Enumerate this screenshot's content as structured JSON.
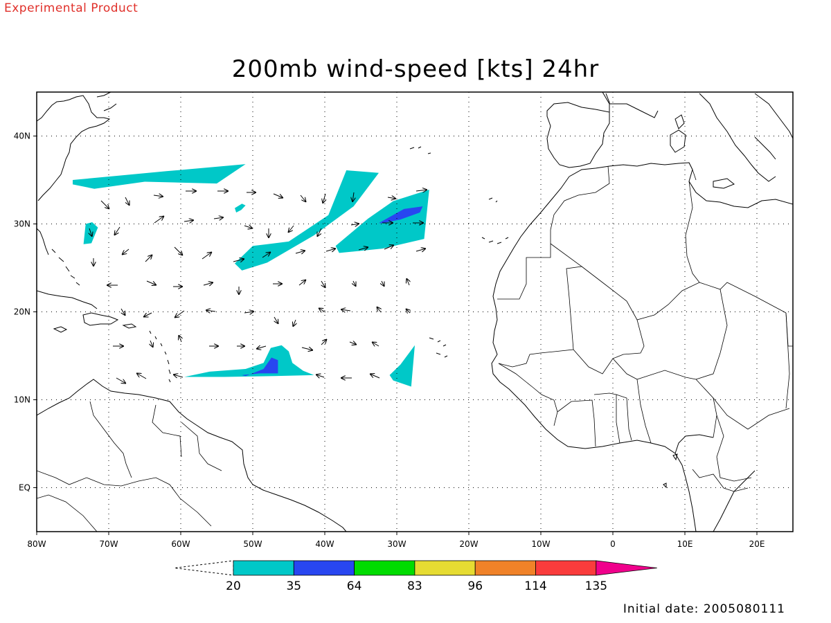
{
  "header": {
    "experimental_label": "Experimental Product",
    "title": "200mb wind-speed [kts] 24hr"
  },
  "footer": {
    "initial_date_label": "Initial date:",
    "initial_date_value": "2005080111"
  },
  "map": {
    "projection": "lat-lon",
    "lon_range": [
      -80,
      25
    ],
    "lat_range": [
      -5,
      45
    ],
    "grid": "dotted",
    "x_ticks": [
      {
        "lon": -80,
        "label": "80W"
      },
      {
        "lon": -70,
        "label": "70W"
      },
      {
        "lon": -60,
        "label": "60W"
      },
      {
        "lon": -50,
        "label": "50W"
      },
      {
        "lon": -40,
        "label": "40W"
      },
      {
        "lon": -30,
        "label": "30W"
      },
      {
        "lon": -20,
        "label": "20W"
      },
      {
        "lon": -10,
        "label": "10W"
      },
      {
        "lon": 0,
        "label": "0"
      },
      {
        "lon": 10,
        "label": "10E"
      },
      {
        "lon": 20,
        "label": "20E"
      }
    ],
    "y_ticks": [
      {
        "lat": 40,
        "label": "40N"
      },
      {
        "lat": 30,
        "label": "30N"
      },
      {
        "lat": 20,
        "label": "20N"
      },
      {
        "lat": 10,
        "label": "10N"
      },
      {
        "lat": 0,
        "label": "EQ"
      }
    ],
    "shading": [
      {
        "level": "20-35",
        "color": "#00c8c8",
        "polygon": [
          [
            -75,
            35
          ],
          [
            -62,
            36
          ],
          [
            -51,
            36.8
          ],
          [
            -55,
            34.6
          ],
          [
            -65,
            34.8
          ],
          [
            -72,
            34
          ],
          [
            -75,
            34.5
          ]
        ]
      },
      {
        "level": "20-35",
        "color": "#00c8c8",
        "polygon": [
          [
            -73.2,
            30
          ],
          [
            -72.3,
            30.2
          ],
          [
            -71.5,
            29.6
          ],
          [
            -72.4,
            27.8
          ],
          [
            -73.5,
            27.7
          ]
        ]
      },
      {
        "level": "20-35",
        "color": "#00c8c8",
        "polygon": [
          [
            -51.5,
            32.3
          ],
          [
            -51,
            32.1
          ],
          [
            -51.6,
            31.6
          ],
          [
            -52.3,
            31.3
          ],
          [
            -52.5,
            31.8
          ]
        ]
      },
      {
        "level": "20-35",
        "color": "#00c8c8",
        "polygon": [
          [
            -45,
            28
          ],
          [
            -39.5,
            31
          ],
          [
            -37,
            36.1
          ],
          [
            -32.5,
            35.8
          ],
          [
            -36,
            32
          ],
          [
            -41.5,
            28.7
          ],
          [
            -48,
            25.6
          ],
          [
            -51.5,
            24.7
          ],
          [
            -52.5,
            25.5
          ],
          [
            -50,
            27.5
          ]
        ]
      },
      {
        "level": "20-35",
        "color": "#00c8c8",
        "polygon": [
          [
            -38.5,
            27.5
          ],
          [
            -34,
            30.6
          ],
          [
            -30.5,
            32.6
          ],
          [
            -25.5,
            33.9
          ],
          [
            -26.2,
            28.3
          ],
          [
            -32,
            27.2
          ],
          [
            -38,
            26.7
          ]
        ]
      },
      {
        "level": "35-64",
        "color": "#2846f0",
        "polygon": [
          [
            -32.5,
            30.1
          ],
          [
            -29,
            31.7
          ],
          [
            -26.4,
            32
          ],
          [
            -26.8,
            31.3
          ],
          [
            -29.5,
            30.5
          ],
          [
            -32,
            30.1
          ]
        ]
      },
      {
        "level": "20-35",
        "color": "#00c8c8",
        "polygon": [
          [
            -59.5,
            12.6
          ],
          [
            -56,
            13.2
          ],
          [
            -51,
            13.5
          ],
          [
            -48.5,
            14.2
          ],
          [
            -47.5,
            15.9
          ],
          [
            -46,
            16.2
          ],
          [
            -45,
            15.5
          ],
          [
            -44.5,
            14.2
          ],
          [
            -43,
            13.3
          ],
          [
            -41.5,
            12.8
          ],
          [
            -47,
            12.7
          ],
          [
            -54,
            12.6
          ]
        ]
      },
      {
        "level": "35-64",
        "color": "#2846f0",
        "polygon": [
          [
            -51.5,
            12.8
          ],
          [
            -49,
            13
          ],
          [
            -46.5,
            13
          ],
          [
            -46.5,
            14.5
          ],
          [
            -47.4,
            14.8
          ],
          [
            -48.5,
            13.5
          ],
          [
            -51,
            12.7
          ]
        ]
      },
      {
        "level": "20-35",
        "color": "#00c8c8",
        "polygon": [
          [
            -31,
            12.8
          ],
          [
            -29.5,
            14
          ],
          [
            -27.5,
            16.2
          ],
          [
            -28,
            11.5
          ],
          [
            -30.5,
            12.2
          ]
        ]
      }
    ],
    "colorbar": {
      "levels": [
        "20",
        "35",
        "64",
        "83",
        "96",
        "114",
        "135"
      ],
      "colors": [
        "#00c8c8",
        "#2846f0",
        "#00dc00",
        "#e6dc32",
        "#f08228",
        "#fa3c3c",
        "#f0008c"
      ],
      "under_color": "#ffffff"
    }
  }
}
